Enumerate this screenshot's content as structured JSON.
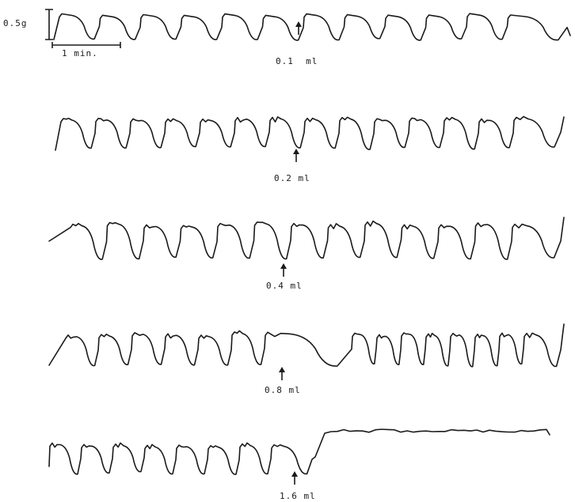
{
  "scale_bar": {
    "force_label": "0.5g",
    "time_label": "1 min."
  },
  "traces": [
    {
      "dose_label": "0.1  ml"
    },
    {
      "dose_label": "0.2 ml"
    },
    {
      "dose_label": "0.4 ml"
    },
    {
      "dose_label": "0.8 ml"
    },
    {
      "dose_label": "1.6 ml"
    }
  ]
}
